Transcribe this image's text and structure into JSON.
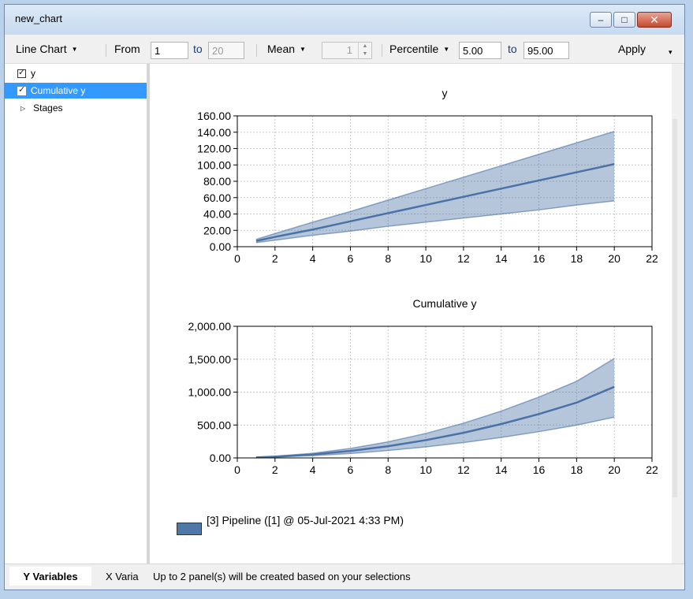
{
  "window": {
    "title": "new_chart"
  },
  "toolbar": {
    "chart_type": "Line Chart",
    "from_label": "From",
    "from_value": "1",
    "to_label": "to",
    "to_value": "20",
    "stat": "Mean",
    "stat_value": "1",
    "range_type": "Percentile",
    "range_from": "5.00",
    "range_to_label": "to",
    "range_to": "95.00",
    "apply_label": "Apply"
  },
  "tree": {
    "items": [
      {
        "label": "y",
        "checked": true
      },
      {
        "label": "Cumulative y",
        "checked": true,
        "selected": true
      },
      {
        "label": "Stages",
        "collapsed": true
      }
    ]
  },
  "tabs": {
    "y_variables": "Y Variables",
    "x_variables": "X Varia"
  },
  "status": {
    "text": "Up to 2 panel(s) will be created based on your selections"
  },
  "legend": {
    "label": "[3] Pipeline ([1] @ 05-Jul-2021 4:33 PM)"
  },
  "colors": {
    "band": "#4f77a8",
    "line": "#4a72a6",
    "selection": "#3399ff",
    "close": "#c54a31"
  },
  "chart_data": [
    {
      "type": "area",
      "title": "y",
      "xlim": [
        0,
        22
      ],
      "ylim": [
        0,
        160
      ],
      "x_ticks": [
        "0",
        "2",
        "4",
        "6",
        "8",
        "10",
        "12",
        "14",
        "16",
        "18",
        "20",
        "22"
      ],
      "y_ticks": [
        "0.00",
        "20.00",
        "40.00",
        "60.00",
        "80.00",
        "100.00",
        "120.00",
        "140.00",
        "160.00"
      ],
      "grid": true,
      "x": [
        1,
        2,
        4,
        6,
        8,
        10,
        12,
        14,
        16,
        18,
        20
      ],
      "series": [
        {
          "name": "[3] Pipeline ([1] @ 05-Jul-2021 4:33 PM)",
          "mean": [
            7,
            12,
            21,
            31,
            41,
            51,
            61,
            71,
            81,
            91,
            101
          ],
          "lower": [
            5,
            8,
            14,
            19,
            25,
            30,
            35,
            40,
            45,
            51,
            56
          ],
          "upper": [
            9,
            16,
            30,
            43,
            57,
            71,
            85,
            99,
            113,
            127,
            141
          ]
        }
      ]
    },
    {
      "type": "area",
      "title": "Cumulative y",
      "xlim": [
        0,
        22
      ],
      "ylim": [
        0,
        2000
      ],
      "x_ticks": [
        "0",
        "2",
        "4",
        "6",
        "8",
        "10",
        "12",
        "14",
        "16",
        "18",
        "20",
        "22"
      ],
      "y_ticks": [
        "0.00",
        "500.00",
        "1,000.00",
        "1,500.00",
        "2,000.00"
      ],
      "grid": true,
      "x": [
        1,
        2,
        4,
        6,
        8,
        10,
        12,
        14,
        16,
        18,
        20
      ],
      "series": [
        {
          "name": "[3] Pipeline ([1] @ 05-Jul-2021 4:33 PM)",
          "mean": [
            7,
            19,
            53,
            106,
            178,
            270,
            382,
            515,
            667,
            840,
            1080
          ],
          "lower": [
            5,
            13,
            35,
            68,
            113,
            168,
            234,
            311,
            399,
            498,
            620
          ],
          "upper": [
            9,
            25,
            70,
            144,
            244,
            372,
            528,
            712,
            924,
            1164,
            1510
          ]
        }
      ]
    }
  ]
}
